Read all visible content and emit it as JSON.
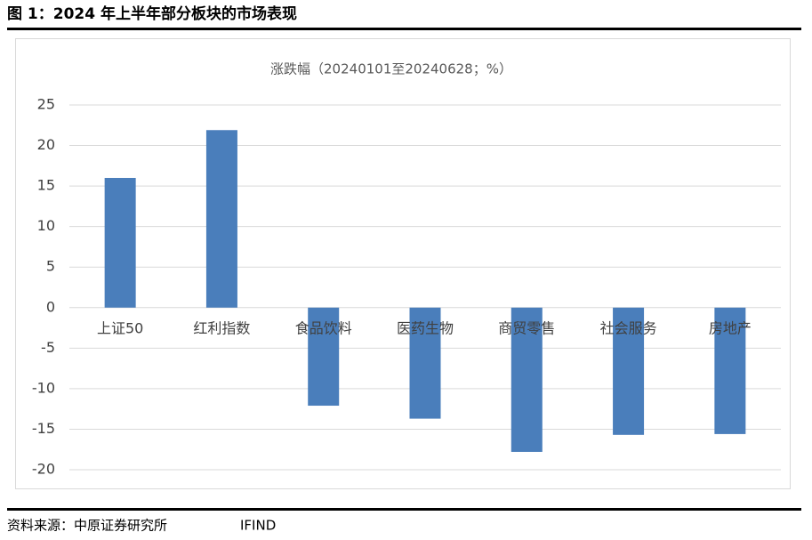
{
  "figure_title": "图 1：2024 年上半年部分板块的市场表现",
  "chart_data": {
    "type": "bar",
    "title": "涨跌幅（20240101至20240628；%）",
    "categories": [
      "上证50",
      "红利指数",
      "食品饮料",
      "医药生物",
      "商贸零售",
      "社会服务",
      "房地产"
    ],
    "values": [
      16.0,
      21.9,
      -12.1,
      -13.7,
      -17.8,
      -15.7,
      -15.6
    ],
    "color": "#4a7ebb",
    "ylim": [
      -20,
      25
    ],
    "yticks": [
      -20,
      -15,
      -10,
      -5,
      0,
      5,
      10,
      15,
      20,
      25
    ],
    "grid": true
  },
  "source": {
    "label": "资料来源：中原证券研究所",
    "name": "IFIND"
  }
}
